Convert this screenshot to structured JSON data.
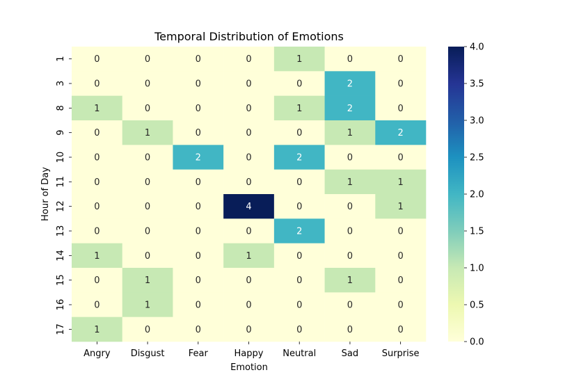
{
  "chart_data": {
    "type": "heatmap",
    "title": "Temporal Distribution of Emotions",
    "xlabel": "Emotion",
    "ylabel": "Hour of Day",
    "x_categories": [
      "Angry",
      "Disgust",
      "Fear",
      "Happy",
      "Neutral",
      "Sad",
      "Surprise"
    ],
    "y_categories": [
      "1",
      "3",
      "8",
      "9",
      "10",
      "11",
      "12",
      "13",
      "14",
      "15",
      "16",
      "17"
    ],
    "values": [
      [
        0,
        0,
        0,
        0,
        1,
        0,
        0
      ],
      [
        0,
        0,
        0,
        0,
        0,
        2,
        0
      ],
      [
        1,
        0,
        0,
        0,
        1,
        2,
        0
      ],
      [
        0,
        1,
        0,
        0,
        0,
        1,
        2
      ],
      [
        0,
        0,
        2,
        0,
        2,
        0,
        0
      ],
      [
        0,
        0,
        0,
        0,
        0,
        1,
        1
      ],
      [
        0,
        0,
        0,
        4,
        0,
        0,
        1
      ],
      [
        0,
        0,
        0,
        0,
        2,
        0,
        0
      ],
      [
        1,
        0,
        0,
        1,
        0,
        0,
        0
      ],
      [
        0,
        1,
        0,
        0,
        0,
        1,
        0
      ],
      [
        0,
        1,
        0,
        0,
        0,
        0,
        0
      ],
      [
        1,
        0,
        0,
        0,
        0,
        0,
        0
      ]
    ],
    "colorbar": {
      "min": 0,
      "max": 4,
      "ticks": [
        "0.0",
        "0.5",
        "1.0",
        "1.5",
        "2.0",
        "2.5",
        "3.0",
        "3.5",
        "4.0"
      ],
      "colormap": "YlGnBu",
      "color_stops": [
        "#ffffd9",
        "#edf8b1",
        "#c7e9b4",
        "#7fcdbb",
        "#41b6c4",
        "#1d91c0",
        "#225ea8",
        "#253494",
        "#081d58"
      ]
    },
    "annotations": true,
    "annotation_colors": {
      "light": "#ffffff",
      "dark": "#262626"
    }
  }
}
